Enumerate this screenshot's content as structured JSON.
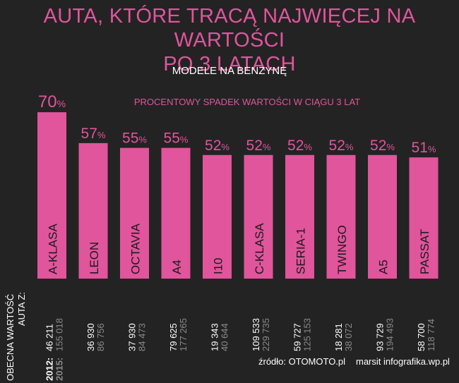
{
  "title_line1": "AUTA, KTÓRE TRACĄ NAJWIĘCEJ NA WARTOŚCI",
  "title_line2": "PO 3 LATACH",
  "subtitle": "MODELE NA BENZYNĘ",
  "caption": "PROCENTOWY SPADEK WARTOŚCI W CIĄGU 3 LAT",
  "row_label": "OBECNA WARTOŚĆ AUTA Z:",
  "source": "źródło: OTOMOTO.pl",
  "author": "marsit infografika.wp.pl",
  "colors": {
    "accent": "#e0559c",
    "background": "#232323",
    "value2015": "#8a8a8a"
  },
  "chart_data": {
    "type": "bar",
    "title": "AUTA, KTÓRE TRACĄ NAJWIĘCEJ NA WARTOŚCI PO 3 LATACH",
    "subtitle": "MODELE NA BENZYNĘ",
    "ylabel": "PROCENTOWY SPADEK WARTOŚCI W CIĄGU 3 LAT",
    "unit": "%",
    "ylim": [
      0,
      70
    ],
    "grid": false,
    "categories": [
      "A-KLASA",
      "LEON",
      "OCTAVIA",
      "A4",
      "I10",
      "C-KLASA",
      "SERIA-1",
      "TWINGO",
      "A5",
      "PASSAT"
    ],
    "values": [
      70,
      57,
      55,
      55,
      52,
      52,
      52,
      52,
      52,
      51
    ],
    "value_2012_label": "2012:",
    "value_2015_label": "2015:",
    "values_2012": [
      "46 211",
      "36 930",
      "37 930",
      "79 625",
      "19 343",
      "109 533",
      "59 727",
      "18 281",
      "93 729",
      "58 700"
    ],
    "values_2015": [
      "155 018",
      "86 756",
      "84 473",
      "177 265",
      "40 644",
      "229 735",
      "125 153",
      "38 072",
      "194 493",
      "118 774"
    ]
  }
}
